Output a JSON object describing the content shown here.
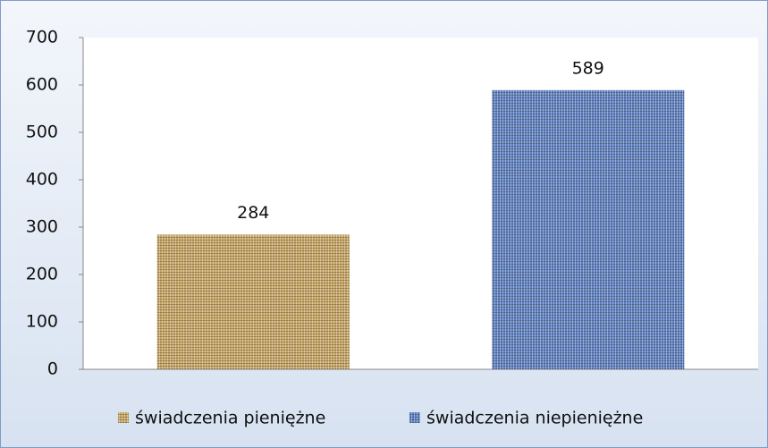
{
  "chart_data": {
    "type": "bar",
    "categories": [
      null
    ],
    "series": [
      {
        "name": "świadczenia pieniężne",
        "color": "#c9a766",
        "values": [
          284
        ]
      },
      {
        "name": "świadczenia niepieniężne",
        "color": "#5f82c4",
        "values": [
          589
        ]
      }
    ],
    "ylim": [
      0,
      700
    ],
    "yticks": [
      0,
      100,
      200,
      300,
      400,
      500,
      600,
      700
    ],
    "grid": false,
    "legend": "bottom",
    "data_labels": true
  }
}
